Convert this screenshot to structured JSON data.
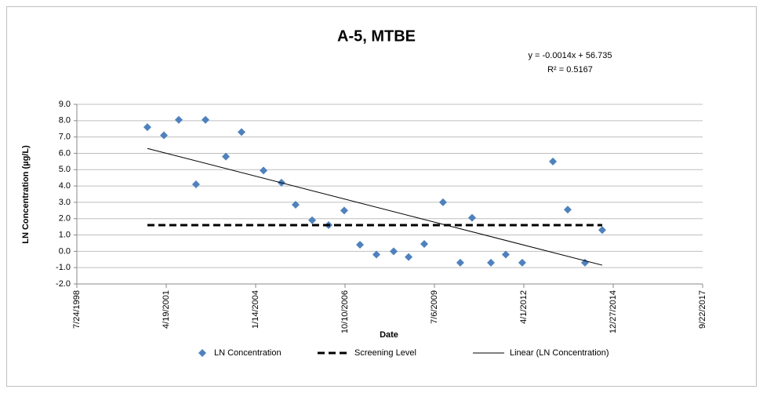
{
  "chart_data": {
    "type": "scatter",
    "title": "A-5, MTBE",
    "annotations": [
      "y = -0.0014x + 56.735",
      "R² = 0.5167"
    ],
    "x_label": "Date",
    "y_label": "LN Concentration (µg/L)",
    "xlim": [
      36000,
      43000
    ],
    "xticks": [
      {
        "value": 36000,
        "label": "7/24/1998"
      },
      {
        "value": 37000,
        "label": "4/19/2001"
      },
      {
        "value": 38000,
        "label": "1/14/2004"
      },
      {
        "value": 39000,
        "label": "10/10/2006"
      },
      {
        "value": 40000,
        "label": "7/6/2009"
      },
      {
        "value": 41000,
        "label": "4/1/2012"
      },
      {
        "value": 42000,
        "label": "12/27/2014"
      },
      {
        "value": 43000,
        "label": "9/22/2017"
      }
    ],
    "ylim": [
      -2,
      9
    ],
    "yticks": [
      {
        "value": -2,
        "label": "-2.0"
      },
      {
        "value": -1,
        "label": "-1.0"
      },
      {
        "value": 0,
        "label": "0.0"
      },
      {
        "value": 1,
        "label": "1.0"
      },
      {
        "value": 2,
        "label": "2.0"
      },
      {
        "value": 3,
        "label": "3.0"
      },
      {
        "value": 4,
        "label": "4.0"
      },
      {
        "value": 5,
        "label": "5.0"
      },
      {
        "value": 6,
        "label": "6.0"
      },
      {
        "value": 7,
        "label": "7.0"
      },
      {
        "value": 8,
        "label": "8.0"
      },
      {
        "value": 9,
        "label": "9.0"
      }
    ],
    "grid": true,
    "legend": "bottom",
    "series": [
      {
        "name": "LN Concentration",
        "style": "marker",
        "color": "#4f81bd",
        "x": [
          36789,
          36974,
          37140,
          37333,
          37439,
          37667,
          37842,
          38088,
          38289,
          38447,
          38632,
          38816,
          38991,
          39167,
          39351,
          39544,
          39711,
          39886,
          40096,
          40289,
          40421,
          40632,
          40798,
          40982,
          41325,
          41491,
          41684,
          41877
        ],
        "values": [
          7.6,
          7.1,
          8.05,
          4.1,
          8.05,
          5.8,
          7.3,
          4.95,
          4.2,
          2.85,
          1.9,
          1.6,
          2.5,
          0.4,
          -0.2,
          0,
          -0.35,
          0.45,
          3.0,
          -0.7,
          2.05,
          -0.7,
          -0.2,
          -0.7,
          5.5,
          2.55,
          -0.7,
          1.3
        ]
      },
      {
        "name": "Screening Level",
        "style": "dashed",
        "color": "#000000",
        "x": [
          36789,
          41877
        ],
        "values": [
          1.6,
          1.6
        ]
      },
      {
        "name": "Linear (LN Concentration)",
        "style": "line",
        "color": "#000000",
        "x": [
          36789,
          41877
        ],
        "values": [
          6.3,
          -0.85
        ]
      }
    ]
  }
}
